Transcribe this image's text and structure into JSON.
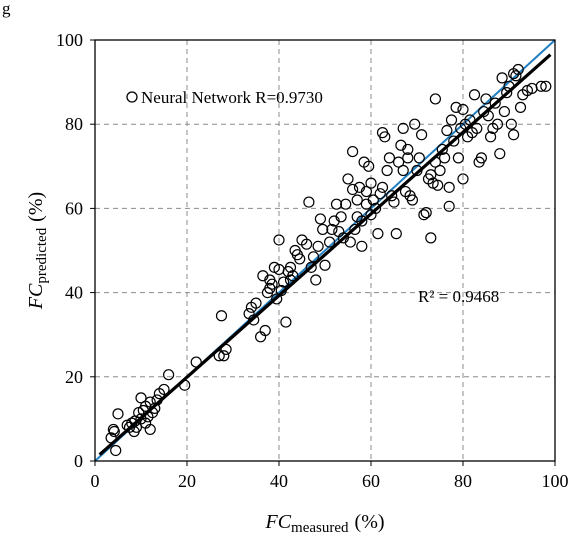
{
  "corner_label": "g",
  "chart_data": {
    "type": "scatter",
    "xlabel": {
      "main": "FC",
      "sub": "measured",
      "unit": "(%)"
    },
    "ylabel": {
      "main": "FC",
      "sub": "predicted",
      "unit": "(%)"
    },
    "xlim": [
      0,
      100
    ],
    "ylim": [
      0,
      100
    ],
    "x_ticks": [
      0,
      20,
      40,
      60,
      80,
      100
    ],
    "y_ticks": [
      0,
      20,
      40,
      60,
      80,
      100
    ],
    "grid": true,
    "legend_position": "top-left",
    "series": [
      {
        "name": "Neural Network R=0.9730",
        "marker": "open-circle",
        "points": [
          [
            3.5,
            5.5
          ],
          [
            4,
            7.5
          ],
          [
            4.2,
            7
          ],
          [
            4.5,
            2.5
          ],
          [
            5,
            11.2
          ],
          [
            7,
            8.5
          ],
          [
            7.5,
            8
          ],
          [
            8,
            9
          ],
          [
            8.5,
            7
          ],
          [
            8.7,
            9.5
          ],
          [
            9,
            8
          ],
          [
            9.5,
            11.5
          ],
          [
            10,
            10
          ],
          [
            10,
            15
          ],
          [
            10.5,
            12
          ],
          [
            11,
            9
          ],
          [
            11,
            13
          ],
          [
            11.5,
            10.5
          ],
          [
            12,
            7.5
          ],
          [
            12,
            14
          ],
          [
            12.5,
            11.5
          ],
          [
            13,
            12.5
          ],
          [
            13.5,
            14.5
          ],
          [
            14,
            16
          ],
          [
            15,
            17
          ],
          [
            16,
            20.5
          ],
          [
            19.5,
            18
          ],
          [
            22,
            23.5
          ],
          [
            27,
            25
          ],
          [
            27.5,
            34.5
          ],
          [
            28,
            25
          ],
          [
            28.5,
            26.5
          ],
          [
            33.5,
            35
          ],
          [
            34,
            36.5
          ],
          [
            34.5,
            33.5
          ],
          [
            35,
            37.5
          ],
          [
            36,
            29.5
          ],
          [
            36.5,
            44
          ],
          [
            37,
            31
          ],
          [
            37.5,
            40
          ],
          [
            38,
            41
          ],
          [
            38,
            43
          ],
          [
            38.5,
            42
          ],
          [
            39,
            46
          ],
          [
            39.5,
            38.5
          ],
          [
            40,
            45.5
          ],
          [
            40,
            52.5
          ],
          [
            40.5,
            40.5
          ],
          [
            41,
            42.5
          ],
          [
            41.5,
            33
          ],
          [
            42,
            45
          ],
          [
            42.5,
            43
          ],
          [
            42.5,
            46
          ],
          [
            43,
            44
          ],
          [
            43.5,
            50
          ],
          [
            44,
            49
          ],
          [
            44.5,
            48
          ],
          [
            45,
            52.5
          ],
          [
            46,
            51.5
          ],
          [
            46.5,
            61.5
          ],
          [
            47,
            46
          ],
          [
            47.5,
            48.5
          ],
          [
            48,
            43
          ],
          [
            48.5,
            51
          ],
          [
            49,
            57.5
          ],
          [
            49.5,
            55
          ],
          [
            50,
            46.5
          ],
          [
            51,
            52
          ],
          [
            51.5,
            55
          ],
          [
            52,
            57
          ],
          [
            52.5,
            61
          ],
          [
            53,
            54.5
          ],
          [
            53.5,
            58
          ],
          [
            54,
            53
          ],
          [
            54.5,
            61
          ],
          [
            55,
            67
          ],
          [
            55.5,
            52
          ],
          [
            56,
            73.5
          ],
          [
            56,
            64.5
          ],
          [
            56.5,
            55
          ],
          [
            57,
            58
          ],
          [
            57,
            62
          ],
          [
            57.5,
            65
          ],
          [
            58,
            51
          ],
          [
            58,
            57
          ],
          [
            58.5,
            71
          ],
          [
            59,
            61
          ],
          [
            59,
            64
          ],
          [
            59.5,
            70
          ],
          [
            60,
            58.5
          ],
          [
            60,
            66
          ],
          [
            60.5,
            62
          ],
          [
            61,
            60
          ],
          [
            61.5,
            54
          ],
          [
            62,
            63.5
          ],
          [
            62.5,
            65
          ],
          [
            62.5,
            78
          ],
          [
            63,
            77
          ],
          [
            63.5,
            69
          ],
          [
            64,
            72
          ],
          [
            64.5,
            63
          ],
          [
            65,
            61.5
          ],
          [
            65.5,
            54
          ],
          [
            66,
            71
          ],
          [
            66.5,
            75
          ],
          [
            67,
            69
          ],
          [
            67,
            79
          ],
          [
            67.5,
            64
          ],
          [
            68,
            74
          ],
          [
            68,
            72
          ],
          [
            68.5,
            63
          ],
          [
            69,
            62
          ],
          [
            69.5,
            80
          ],
          [
            70,
            69
          ],
          [
            70.5,
            72
          ],
          [
            71,
            77.5
          ],
          [
            71.5,
            58.5
          ],
          [
            72,
            59
          ],
          [
            72.5,
            67
          ],
          [
            73,
            53
          ],
          [
            73,
            68
          ],
          [
            73.5,
            66
          ],
          [
            74,
            86
          ],
          [
            74,
            71
          ],
          [
            74.5,
            65.5
          ],
          [
            75,
            69
          ],
          [
            75.5,
            74
          ],
          [
            76,
            72
          ],
          [
            76.5,
            78.5
          ],
          [
            77,
            65
          ],
          [
            77,
            60.5
          ],
          [
            77.5,
            81
          ],
          [
            78,
            76
          ],
          [
            78.5,
            84
          ],
          [
            79,
            72
          ],
          [
            79.5,
            79
          ],
          [
            80,
            83.5
          ],
          [
            80,
            67
          ],
          [
            80.5,
            80
          ],
          [
            81,
            77
          ],
          [
            81.5,
            81
          ],
          [
            82,
            78
          ],
          [
            82.5,
            87
          ],
          [
            83,
            79
          ],
          [
            83.5,
            71
          ],
          [
            84,
            72
          ],
          [
            84.5,
            83
          ],
          [
            85,
            86
          ],
          [
            85.5,
            82
          ],
          [
            86,
            77
          ],
          [
            86.5,
            79
          ],
          [
            87,
            85
          ],
          [
            87.5,
            80
          ],
          [
            88,
            73
          ],
          [
            88.5,
            91
          ],
          [
            89,
            83
          ],
          [
            89.5,
            87.5
          ],
          [
            90,
            89
          ],
          [
            90.5,
            80
          ],
          [
            91,
            92
          ],
          [
            91,
            77.5
          ],
          [
            91.5,
            91.5
          ],
          [
            92,
            93
          ],
          [
            92.5,
            84
          ],
          [
            93,
            87
          ],
          [
            94,
            88
          ],
          [
            95,
            88.5
          ],
          [
            97,
            89
          ],
          [
            98,
            89
          ]
        ]
      }
    ],
    "fit_line": {
      "x": [
        1,
        99
      ],
      "y": [
        1.5,
        96.5
      ],
      "label": "R² = 0.9468",
      "color": "#000000"
    },
    "identity_line": {
      "x": [
        0,
        100
      ],
      "y": [
        0,
        100
      ],
      "color": "#1f7fc2"
    }
  }
}
